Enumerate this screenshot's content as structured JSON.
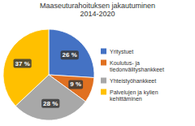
{
  "chart_data": {
    "type": "pie",
    "title": "Maaseuturahoituksen jakautuminen\n2014-2020",
    "categories": [
      "Yritystuet",
      "Koulutus- ja\ntiedonvälityshankkeet",
      "Yhteistyöhankkeet",
      "Palvelujen ja kylien\nkehittäminen"
    ],
    "values": [
      26,
      9,
      28,
      37
    ],
    "value_labels": [
      "26 %",
      "9 %",
      "28 %",
      "37 %"
    ],
    "colors": [
      "#4472C4",
      "#E07020",
      "#A8A8A8",
      "#FFC000"
    ],
    "data_labels": true,
    "legend": "right"
  }
}
